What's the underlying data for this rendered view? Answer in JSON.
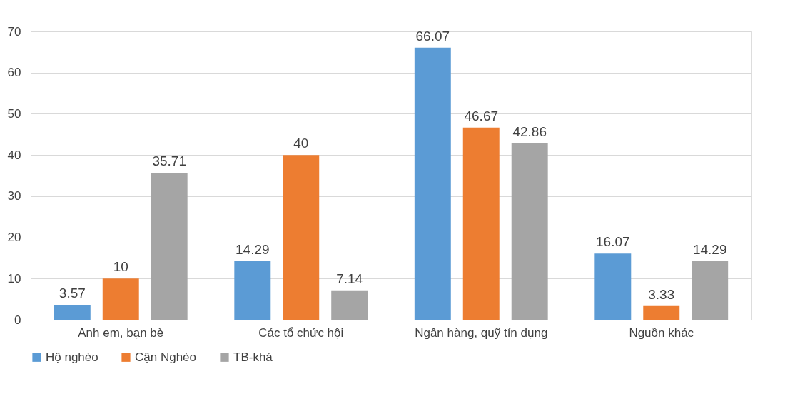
{
  "chart_data": {
    "type": "bar",
    "categories": [
      "Anh em, bạn bè",
      "Các tổ chức hội",
      "Ngân hàng, quỹ tín dụng",
      "Nguồn khác"
    ],
    "series": [
      {
        "name": "Hộ nghèo",
        "color": "#5b9bd5",
        "values": [
          3.57,
          14.29,
          66.07,
          16.07
        ]
      },
      {
        "name": "Cận Nghèo",
        "color": "#ed7d31",
        "values": [
          10,
          40,
          46.67,
          3.33
        ]
      },
      {
        "name": "TB-khá",
        "color": "#a5a5a5",
        "values": [
          35.71,
          7.14,
          42.86,
          14.29
        ]
      }
    ],
    "ylim": [
      0,
      70
    ],
    "yticks": [
      0,
      10,
      20,
      30,
      40,
      50,
      60,
      70
    ],
    "grid": "y",
    "legend": "bottom",
    "data_labels": true
  }
}
